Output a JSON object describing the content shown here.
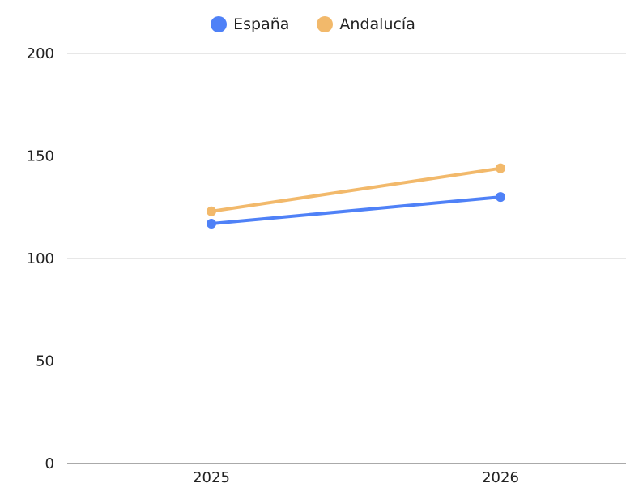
{
  "chart_data": {
    "type": "line",
    "categories": [
      "2025",
      "2026"
    ],
    "series": [
      {
        "name": "España",
        "values": [
          117,
          130
        ],
        "color": "#4f81f7"
      },
      {
        "name": "Andalucía",
        "values": [
          123,
          144
        ],
        "color": "#f2b96b"
      }
    ],
    "ylim": [
      0,
      200
    ],
    "yticks": [
      0,
      50,
      100,
      150,
      200
    ],
    "grid": true,
    "legend_position": "top-center"
  }
}
